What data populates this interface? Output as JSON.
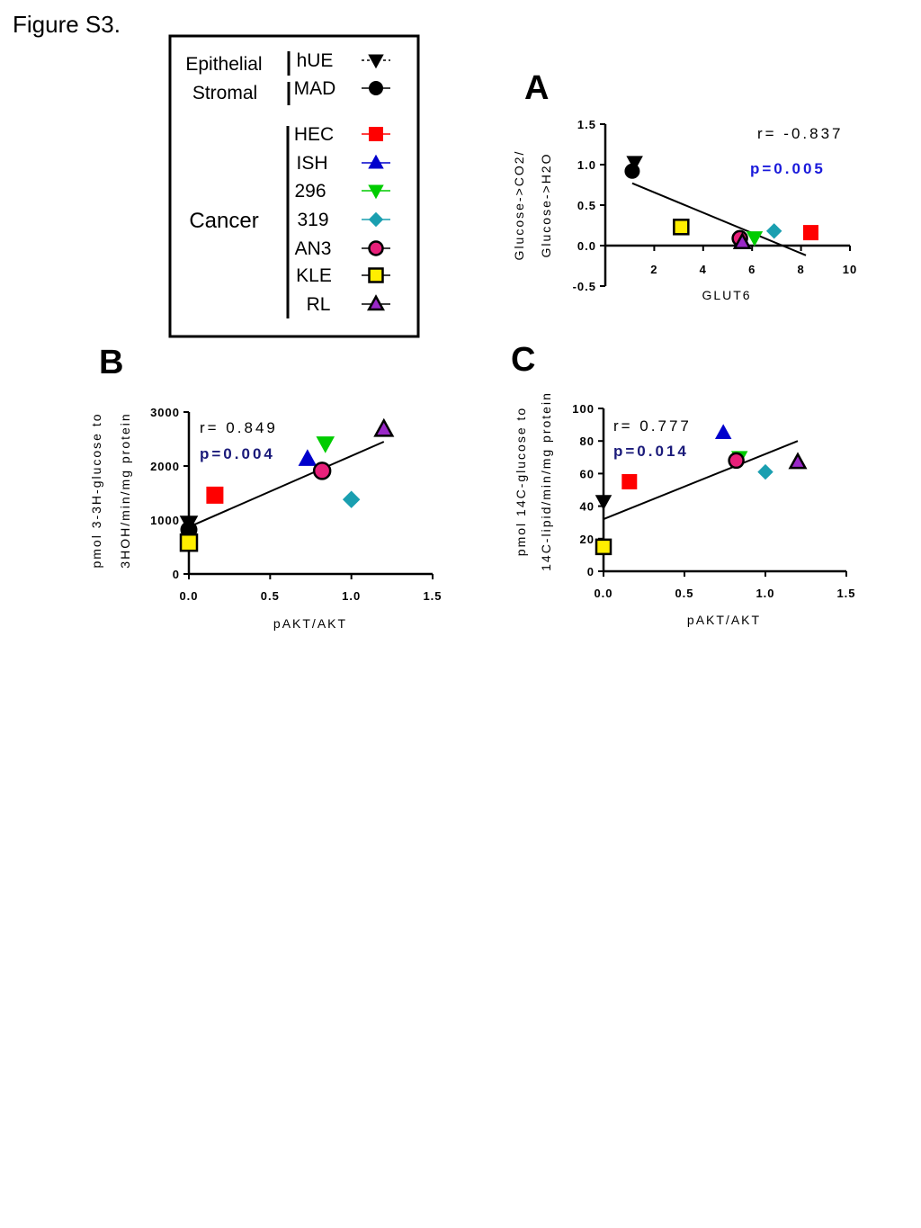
{
  "figure_title": "Figure S3.",
  "legend": {
    "groups": [
      {
        "label": "Epithelial",
        "lines": [
          "Epithelial"
        ]
      },
      {
        "label": "Stromal",
        "lines": [
          "Stromal"
        ]
      },
      {
        "label": "Cancer",
        "lines": [
          "Cancer"
        ]
      }
    ],
    "entries": [
      {
        "name": "hUE",
        "marker": "triangle-down",
        "fill": "#000000",
        "edge": "#000000",
        "dashed": true
      },
      {
        "name": "MAD",
        "marker": "circle",
        "fill": "#000000",
        "edge": "#000000",
        "dashed": false
      },
      {
        "name": "HEC",
        "marker": "square",
        "fill": "#ff0000",
        "edge": "#ff0000",
        "dashed": false
      },
      {
        "name": "ISH",
        "marker": "triangle-up",
        "fill": "#0000cc",
        "edge": "#0000cc",
        "dashed": false
      },
      {
        "name": "296",
        "marker": "triangle-down",
        "fill": "#00cc00",
        "edge": "#00cc00",
        "dashed": false
      },
      {
        "name": "319",
        "marker": "diamond",
        "fill": "#1a9fb0",
        "edge": "#1a9fb0",
        "dashed": false
      },
      {
        "name": "AN3",
        "marker": "circle",
        "fill": "#e8207a",
        "edge": "#000000",
        "dashed": false
      },
      {
        "name": "KLE",
        "marker": "square",
        "fill": "#ffee00",
        "edge": "#000000",
        "dashed": false
      },
      {
        "name": "RL",
        "marker": "triangle-up",
        "fill": "#9a28c8",
        "edge": "#000000",
        "dashed": false
      }
    ]
  },
  "chart_data": [
    {
      "panel": "A",
      "type": "scatter",
      "xlabel": "GLUT6",
      "ylabel_line1": "Glucose->CO2/",
      "ylabel_line2": "Glucose->H2O",
      "xlim": [
        0,
        10
      ],
      "ylim": [
        -0.5,
        1.5
      ],
      "xticks": [
        "2",
        "4",
        "6",
        "8",
        "10"
      ],
      "yticks": [
        "-0.5",
        "0.0",
        "0.5",
        "1.0",
        "1.5"
      ],
      "r_text": "r= -0.837",
      "p_text": "p=0.005",
      "p_color": "#1a1adb",
      "fit_line": {
        "x": [
          1.1,
          8.2
        ],
        "y": [
          0.77,
          -0.12
        ]
      },
      "points": [
        {
          "series": "hUE",
          "x": 1.2,
          "y": 1.03
        },
        {
          "series": "MAD",
          "x": 1.1,
          "y": 0.92
        },
        {
          "series": "HEC",
          "x": 8.4,
          "y": 0.16
        },
        {
          "series": "ISH",
          "x": 5.6,
          "y": 0.06
        },
        {
          "series": "296",
          "x": 6.1,
          "y": 0.1
        },
        {
          "series": "319",
          "x": 6.9,
          "y": 0.18
        },
        {
          "series": "AN3",
          "x": 5.5,
          "y": 0.09
        },
        {
          "series": "KLE",
          "x": 3.1,
          "y": 0.23
        },
        {
          "series": "RL",
          "x": 5.6,
          "y": 0.04
        }
      ]
    },
    {
      "panel": "B",
      "type": "scatter",
      "xlabel": "pAKT/AKT",
      "ylabel_line1": "pmol 3-3H-glucose to",
      "ylabel_line2": "3HOH/min/mg protein",
      "xlim": [
        0,
        1.5
      ],
      "ylim": [
        0,
        3000
      ],
      "xticks": [
        "0.0",
        "0.5",
        "1.0",
        "1.5"
      ],
      "yticks": [
        "0",
        "1000",
        "2000",
        "3000"
      ],
      "r_text": "r= 0.849",
      "p_text": "p=0.004",
      "p_color": "#1a1a7a",
      "fit_line": {
        "x": [
          0.0,
          1.2
        ],
        "y": [
          870,
          2450
        ]
      },
      "points": [
        {
          "series": "hUE",
          "x": 0.0,
          "y": 950
        },
        {
          "series": "MAD",
          "x": 0.0,
          "y": 820
        },
        {
          "series": "HEC",
          "x": 0.16,
          "y": 1460
        },
        {
          "series": "ISH",
          "x": 0.73,
          "y": 2130
        },
        {
          "series": "296",
          "x": 0.84,
          "y": 2420
        },
        {
          "series": "319",
          "x": 1.0,
          "y": 1380
        },
        {
          "series": "AN3",
          "x": 0.82,
          "y": 1910
        },
        {
          "series": "KLE",
          "x": 0.0,
          "y": 580
        },
        {
          "series": "RL",
          "x": 1.2,
          "y": 2680
        }
      ]
    },
    {
      "panel": "C",
      "type": "scatter",
      "xlabel": "pAKT/AKT",
      "ylabel_line1": "pmol 14C-glucose to",
      "ylabel_line2": "14C-lipid/min/mg protein",
      "xlim": [
        0,
        1.5
      ],
      "ylim": [
        0,
        100
      ],
      "xticks": [
        "0.0",
        "0.5",
        "1.0",
        "1.5"
      ],
      "yticks": [
        "0",
        "20",
        "40",
        "60",
        "80",
        "100"
      ],
      "r_text": "r= 0.777",
      "p_text": "p=0.014",
      "p_color": "#1a1a7a",
      "fit_line": {
        "x": [
          0.0,
          1.2
        ],
        "y": [
          32,
          80
        ]
      },
      "points": [
        {
          "series": "hUE",
          "x": 0.0,
          "y": 43
        },
        {
          "series": "HEC",
          "x": 0.16,
          "y": 55
        },
        {
          "series": "ISH",
          "x": 0.74,
          "y": 85
        },
        {
          "series": "296",
          "x": 0.84,
          "y": 70
        },
        {
          "series": "319",
          "x": 1.0,
          "y": 61
        },
        {
          "series": "AN3",
          "x": 0.82,
          "y": 68
        },
        {
          "series": "KLE",
          "x": 0.0,
          "y": 15
        },
        {
          "series": "RL",
          "x": 1.2,
          "y": 67
        }
      ]
    }
  ]
}
